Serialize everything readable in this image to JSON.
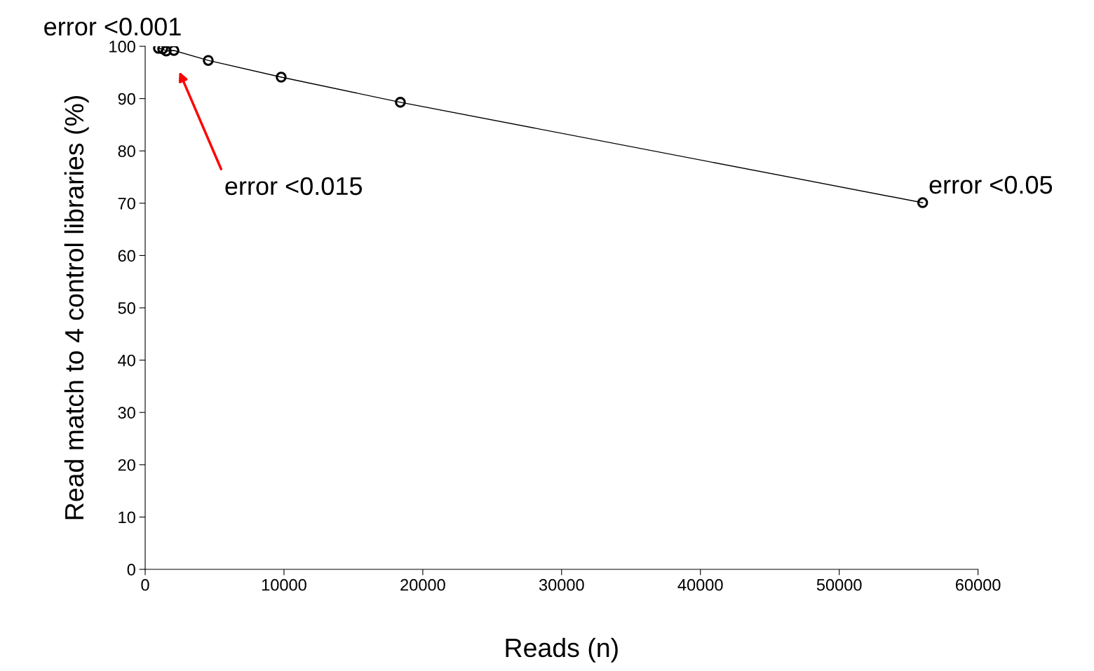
{
  "chart_data": {
    "type": "line",
    "xlabel": "Reads (n)",
    "ylabel": "Read match to 4 control libraries (%)",
    "x": [
      960,
      1263,
      1515,
      2071,
      4545,
      9798,
      18384,
      56010
    ],
    "series": [
      {
        "color": "#000000",
        "values": [
          99.6,
          99.5,
          99.1,
          99.2,
          97.3,
          94.1,
          89.3,
          70.1
        ]
      }
    ],
    "marker": "circle",
    "xlim": [
      0,
      60000
    ],
    "xticks": [
      0,
      10000,
      20000,
      30000,
      40000,
      50000,
      60000
    ],
    "ylim": [
      0,
      100
    ],
    "yticks": [
      0,
      10,
      20,
      30,
      40,
      50,
      60,
      70,
      80,
      90,
      100
    ],
    "grid": false,
    "legend": false,
    "annotations": [
      {
        "text": "error <0.001",
        "x": 960,
        "y": 99.6
      },
      "error <0.015",
      {
        "text": "error <0.05",
        "x": 56010,
        "y": 70.1
      }
    ]
  }
}
